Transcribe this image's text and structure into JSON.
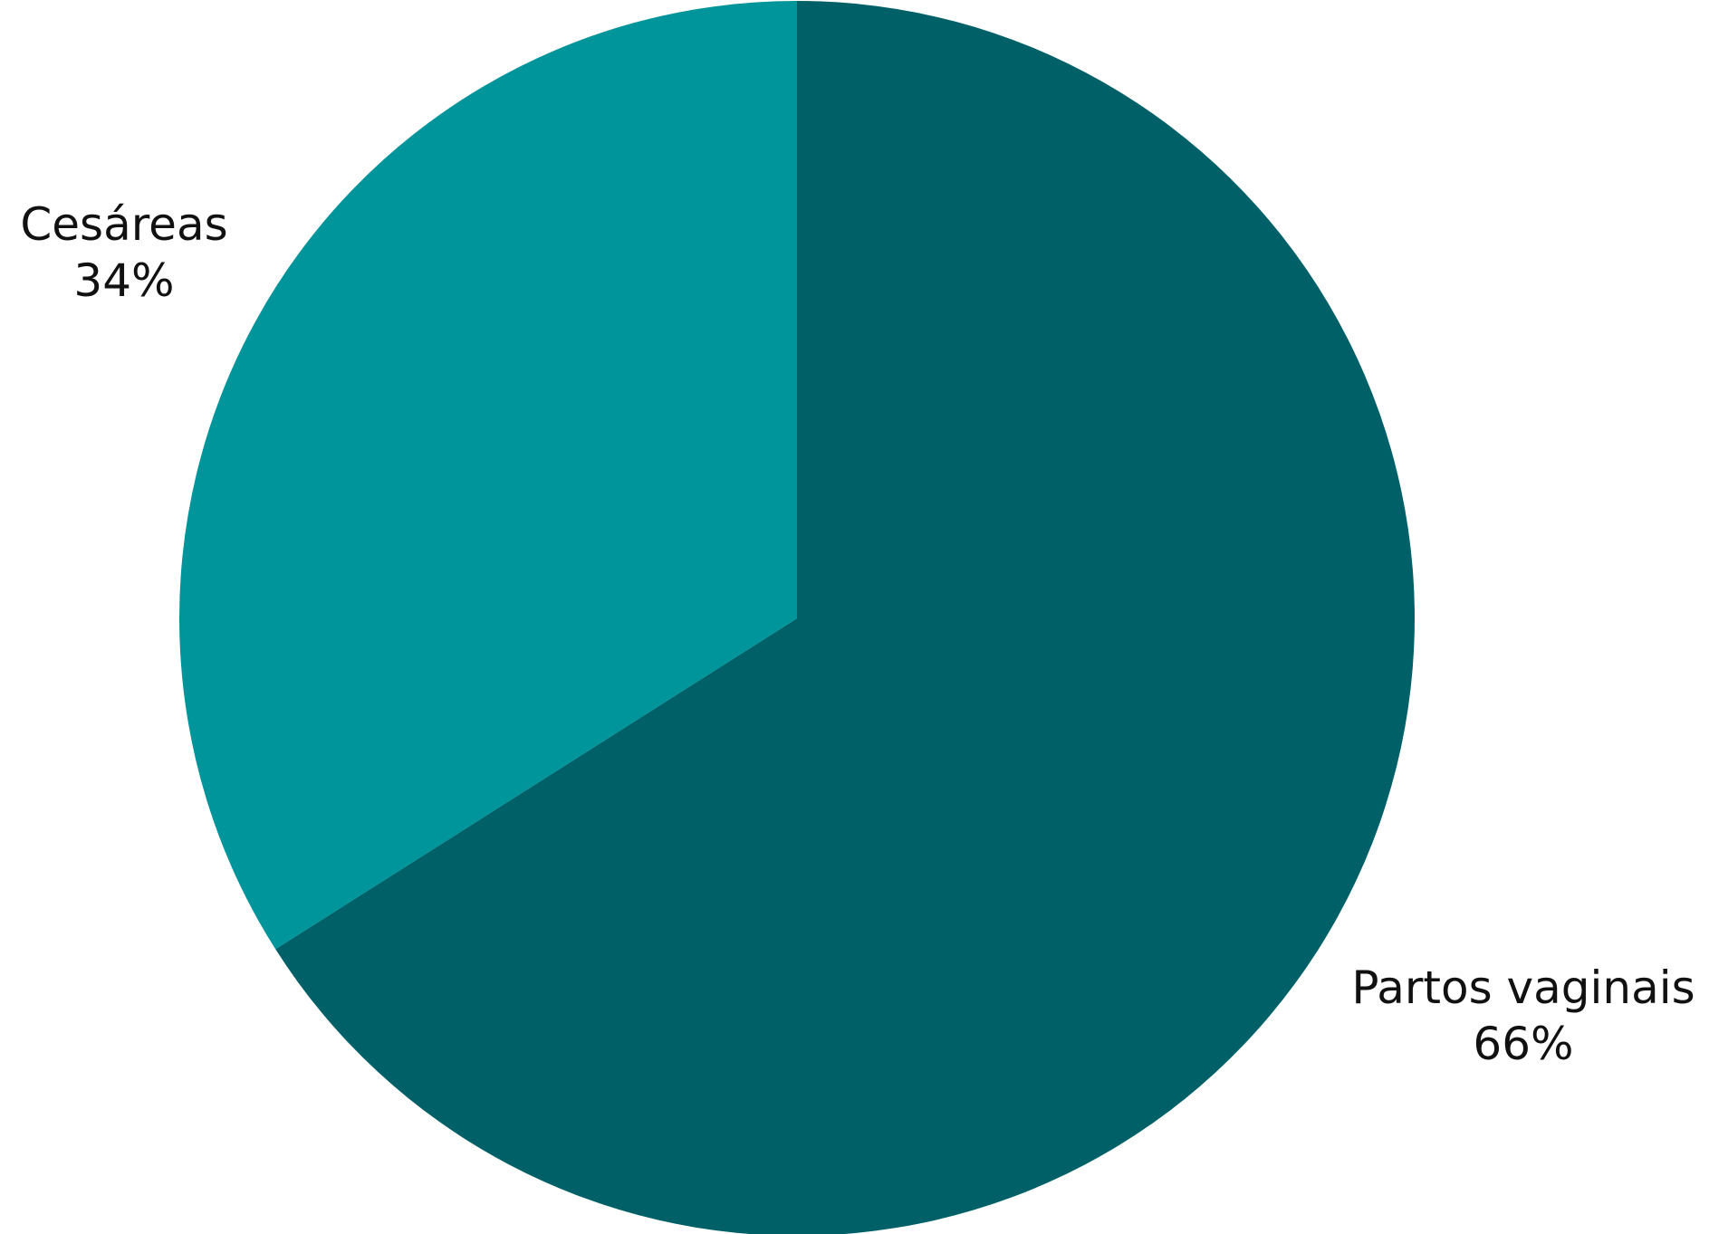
{
  "chart_data": {
    "type": "pie",
    "start_angle_deg": 0,
    "direction": "clockwise",
    "slices": [
      {
        "label": "Partos vaginais",
        "value": 66,
        "value_label": "66%",
        "color": "#006068"
      },
      {
        "label": "Cesáreas",
        "value": 34,
        "value_label": "34%",
        "color": "#00949B"
      }
    ]
  }
}
